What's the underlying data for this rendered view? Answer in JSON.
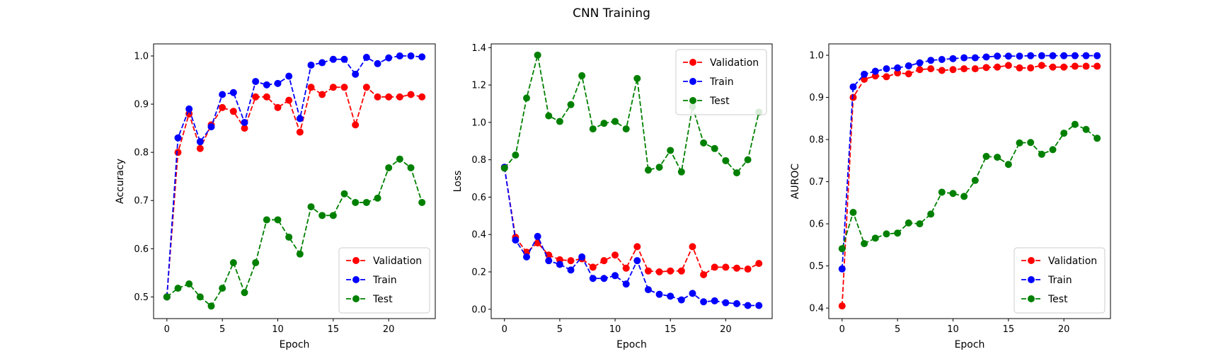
{
  "title": "CNN Training",
  "series_colors": {
    "Validation": "#ff0000",
    "Train": "#0000ff",
    "Test": "#008000"
  },
  "chart_data": [
    {
      "type": "line",
      "xlabel": "Epoch",
      "ylabel": "Accuracy",
      "xlim": [
        -1.2,
        24.2
      ],
      "ylim": [
        0.455,
        1.025
      ],
      "xticks": [
        0,
        5,
        10,
        15,
        20
      ],
      "xtick_labels": [
        "0",
        "5",
        "10",
        "15",
        "20"
      ],
      "yticks": [
        0.5,
        0.6,
        0.7,
        0.8,
        0.9,
        1.0
      ],
      "ytick_labels": [
        "0.5",
        "0.6",
        "0.7",
        "0.8",
        "0.9",
        "1.0"
      ],
      "legend_position": "lower-right",
      "x": [
        0,
        1,
        2,
        3,
        4,
        5,
        6,
        7,
        8,
        9,
        10,
        11,
        12,
        13,
        14,
        15,
        16,
        17,
        18,
        19,
        20,
        21,
        22,
        23
      ],
      "series": [
        {
          "name": "Validation",
          "values": [
            0.5,
            0.8,
            0.88,
            0.808,
            0.857,
            0.893,
            0.885,
            0.85,
            0.915,
            0.915,
            0.893,
            0.908,
            0.842,
            0.935,
            0.92,
            0.935,
            0.935,
            0.857,
            0.935,
            0.915,
            0.915,
            0.915,
            0.92,
            0.915
          ]
        },
        {
          "name": "Train",
          "values": [
            0.5,
            0.83,
            0.89,
            0.822,
            0.853,
            0.92,
            0.924,
            0.862,
            0.947,
            0.94,
            0.943,
            0.958,
            0.87,
            0.981,
            0.986,
            0.993,
            0.993,
            0.962,
            0.997,
            0.984,
            0.996,
            1.0,
            1.0,
            0.998
          ]
        },
        {
          "name": "Test",
          "values": [
            0.5,
            0.518,
            0.527,
            0.5,
            0.481,
            0.518,
            0.571,
            0.509,
            0.571,
            0.66,
            0.66,
            0.624,
            0.589,
            0.687,
            0.669,
            0.669,
            0.714,
            0.696,
            0.696,
            0.705,
            0.768,
            0.786,
            0.768,
            0.696
          ]
        }
      ]
    },
    {
      "type": "line",
      "xlabel": "Epoch",
      "ylabel": "Loss",
      "xlim": [
        -1.2,
        24.2
      ],
      "ylim": [
        -0.05,
        1.42
      ],
      "xticks": [
        0,
        5,
        10,
        15,
        20
      ],
      "xtick_labels": [
        "0",
        "5",
        "10",
        "15",
        "20"
      ],
      "yticks": [
        0.0,
        0.2,
        0.4,
        0.6,
        0.8,
        1.0,
        1.2,
        1.4
      ],
      "ytick_labels": [
        "0.0",
        "0.2",
        "0.4",
        "0.6",
        "0.8",
        "1.0",
        "1.2",
        "1.4"
      ],
      "legend_position": "upper-right",
      "x": [
        0,
        1,
        2,
        3,
        4,
        5,
        6,
        7,
        8,
        9,
        10,
        11,
        12,
        13,
        14,
        15,
        16,
        17,
        18,
        19,
        20,
        21,
        22,
        23
      ],
      "series": [
        {
          "name": "Validation",
          "values": [
            0.76,
            0.385,
            0.305,
            0.355,
            0.29,
            0.265,
            0.26,
            0.27,
            0.225,
            0.26,
            0.29,
            0.22,
            0.335,
            0.205,
            0.2,
            0.205,
            0.205,
            0.335,
            0.185,
            0.225,
            0.225,
            0.22,
            0.215,
            0.245
          ]
        },
        {
          "name": "Train",
          "values": [
            0.76,
            0.37,
            0.28,
            0.39,
            0.26,
            0.24,
            0.21,
            0.28,
            0.165,
            0.165,
            0.18,
            0.135,
            0.26,
            0.105,
            0.08,
            0.07,
            0.05,
            0.085,
            0.04,
            0.045,
            0.035,
            0.03,
            0.02,
            0.02
          ]
        },
        {
          "name": "Test",
          "values": [
            0.755,
            0.825,
            1.13,
            1.36,
            1.035,
            1.005,
            1.095,
            1.25,
            0.965,
            0.995,
            1.005,
            0.965,
            1.235,
            0.745,
            0.76,
            0.85,
            0.735,
            1.085,
            0.89,
            0.86,
            0.795,
            0.73,
            0.8,
            1.055
          ]
        }
      ]
    },
    {
      "type": "line",
      "xlabel": "Epoch",
      "ylabel": "AUROC",
      "xlim": [
        -1.2,
        24.2
      ],
      "ylim": [
        0.375,
        1.027
      ],
      "xticks": [
        0,
        5,
        10,
        15,
        20
      ],
      "xtick_labels": [
        "0",
        "5",
        "10",
        "15",
        "20"
      ],
      "yticks": [
        0.4,
        0.5,
        0.6,
        0.7,
        0.8,
        0.9,
        1.0
      ],
      "ytick_labels": [
        "0.4",
        "0.5",
        "0.6",
        "0.7",
        "0.8",
        "0.9",
        "1.0"
      ],
      "legend_position": "lower-right",
      "x": [
        0,
        1,
        2,
        3,
        4,
        5,
        6,
        7,
        8,
        9,
        10,
        11,
        12,
        13,
        14,
        15,
        16,
        17,
        18,
        19,
        20,
        21,
        22,
        23
      ],
      "series": [
        {
          "name": "Validation",
          "values": [
            0.405,
            0.9,
            0.943,
            0.951,
            0.949,
            0.958,
            0.956,
            0.966,
            0.968,
            0.964,
            0.966,
            0.968,
            0.968,
            0.971,
            0.972,
            0.976,
            0.97,
            0.97,
            0.976,
            0.972,
            0.972,
            0.974,
            0.974,
            0.974
          ]
        },
        {
          "name": "Train",
          "values": [
            0.493,
            0.925,
            0.955,
            0.962,
            0.968,
            0.97,
            0.975,
            0.982,
            0.988,
            0.99,
            0.992,
            0.994,
            0.994,
            0.996,
            0.998,
            0.998,
            0.998,
            0.999,
            0.999,
            0.999,
            0.999,
            0.999,
            0.999,
            0.999
          ]
        },
        {
          "name": "Test",
          "values": [
            0.541,
            0.627,
            0.553,
            0.566,
            0.576,
            0.578,
            0.602,
            0.6,
            0.623,
            0.675,
            0.672,
            0.665,
            0.703,
            0.76,
            0.758,
            0.741,
            0.792,
            0.793,
            0.765,
            0.776,
            0.815,
            0.836,
            0.824,
            0.803
          ]
        }
      ]
    }
  ]
}
